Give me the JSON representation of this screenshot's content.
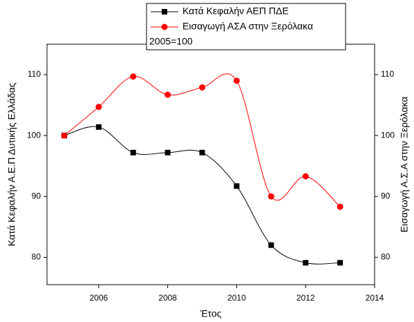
{
  "chart_data": {
    "type": "line",
    "x": [
      2005,
      2006,
      2007,
      2008,
      2009,
      2010,
      2011,
      2012,
      2013
    ],
    "series": [
      {
        "name": "Κατά Κεφαλήν ΑΕΠ ΠΔΕ",
        "color": "#000000",
        "marker": "square",
        "values": [
          100,
          101.4,
          97.2,
          97.2,
          97.2,
          91.7,
          82.0,
          79.1,
          79.1
        ]
      },
      {
        "name": "Εισαγωγή ΑΣΑ στην Ξερόλακα",
        "color": "#ff0000",
        "marker": "circle",
        "axis": "y2",
        "values": [
          100,
          104.7,
          109.7,
          106.7,
          107.9,
          109.0,
          90.0,
          93.3,
          88.3
        ]
      }
    ],
    "annotation": "2005=100",
    "x_label": "Έτος",
    "y_label": "Κατά Κεφαλήν Α.Ε.Π Δυτικής Ελλάδας",
    "y2_label": "Εισαγωγή Α.Σ.Α στην Ξερόλακα",
    "xlim": [
      2004.5,
      2014
    ],
    "xticks": [
      2006,
      2008,
      2010,
      2012,
      2014
    ],
    "ylim": [
      75.5,
      115
    ],
    "yticks": [
      80,
      90,
      100,
      110
    ],
    "y2lim": [
      75.5,
      115
    ],
    "y2ticks": [
      80,
      90,
      100,
      110
    ],
    "smooth": true
  }
}
